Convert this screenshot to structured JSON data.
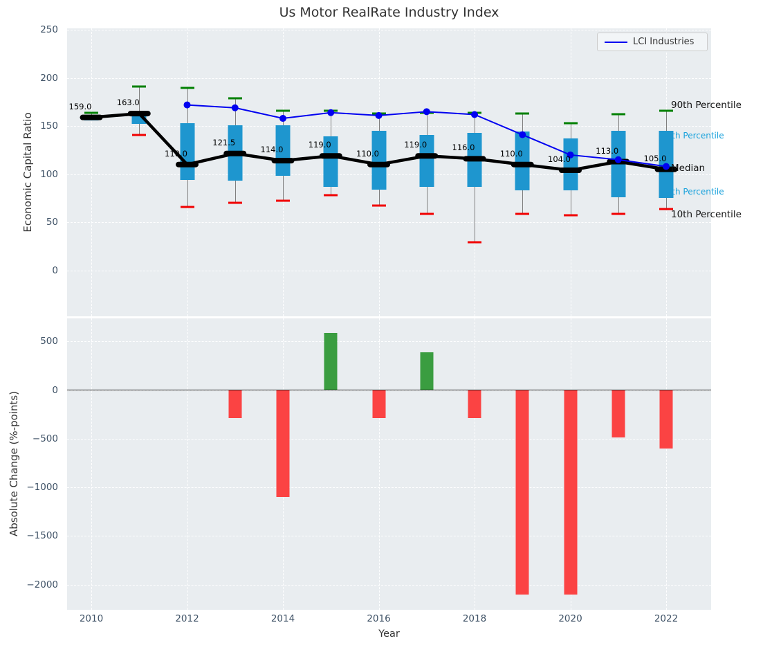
{
  "title": "Us Motor RealRate Industry Index",
  "legend": {
    "label": "LCI Industries"
  },
  "colors": {
    "panel_bg": "#e9edf0",
    "box": "#1e96cf",
    "whisker": "#7f7f7f",
    "cap_high": "#008000",
    "cap_low": "#f10000",
    "median_line": "#000000",
    "lci_line": "#0101f0",
    "bar_positive": "#3a9d40",
    "bar_negative": "#fb4343",
    "cyan_label": "#1aa2dc",
    "tick_text": "#3f5266"
  },
  "chart_data": [
    {
      "type": "boxplot_line",
      "title": "Us Motor RealRate Industry Index",
      "ylabel": "Economic Capital Ratio",
      "yticks": [
        0,
        50,
        100,
        150,
        200,
        250
      ],
      "ylim": [
        -48,
        252
      ],
      "xticks": [
        2010,
        2012,
        2014,
        2016,
        2018,
        2020,
        2022
      ],
      "grid": true,
      "legend_entries": [
        "LCI Industries"
      ],
      "legend_position": "upper right",
      "years": [
        2010,
        2011,
        2012,
        2013,
        2014,
        2015,
        2016,
        2017,
        2018,
        2019,
        2020,
        2021,
        2022
      ],
      "median": [
        159,
        163,
        110,
        121.5,
        114,
        119,
        110,
        119,
        116,
        110,
        104,
        113,
        105
      ],
      "median_labels": [
        "159.0",
        "163.0",
        "110.0",
        "121.5",
        "114.0",
        "119.0",
        "110.0",
        "119.0",
        "116.0",
        "110.0",
        "104.0",
        "113.0",
        "105.0"
      ],
      "q1": [
        156,
        152,
        94,
        93,
        98,
        87,
        84,
        87,
        87,
        83,
        83,
        76,
        75
      ],
      "q3": [
        161,
        164,
        153,
        151,
        151,
        139,
        145,
        141,
        143,
        144,
        137,
        145,
        145
      ],
      "p10": [
        157,
        141,
        66,
        70,
        72,
        78,
        67,
        59,
        29,
        59,
        57,
        59,
        64
      ],
      "p90": [
        164,
        191,
        190,
        179,
        166,
        166,
        163,
        164,
        164,
        163,
        153,
        162,
        166
      ],
      "series": [
        {
          "name": "LCI Industries",
          "values": [
            null,
            null,
            172,
            169,
            158,
            164,
            161,
            165,
            162,
            141,
            120,
            115,
            108
          ]
        }
      ],
      "right_labels": [
        {
          "text": "90th Percentile",
          "value": 172,
          "style": "black"
        },
        {
          "text": "75th Percentile",
          "value": 140,
          "style": "cyan"
        },
        {
          "text": "Median",
          "value": 106,
          "style": "black"
        },
        {
          "text": "25th Percentile",
          "value": 82,
          "style": "cyan"
        },
        {
          "text": "10th Percentile",
          "value": 58,
          "style": "black"
        }
      ]
    },
    {
      "type": "bar",
      "ylabel": "Absolute Change (%-points)",
      "xlabel": "Year",
      "yticks": [
        500,
        0,
        -500,
        -1000,
        -1500,
        -2000
      ],
      "ylim": [
        -2260,
        737
      ],
      "xticks": [
        2010,
        2012,
        2014,
        2016,
        2018,
        2020,
        2022
      ],
      "grid": true,
      "years": [
        2010,
        2011,
        2012,
        2013,
        2014,
        2015,
        2016,
        2017,
        2018,
        2019,
        2020,
        2021,
        2022
      ],
      "values": [
        null,
        null,
        null,
        -290,
        -1100,
        590,
        -290,
        390,
        -290,
        -2100,
        -2100,
        -490,
        -600
      ]
    }
  ]
}
